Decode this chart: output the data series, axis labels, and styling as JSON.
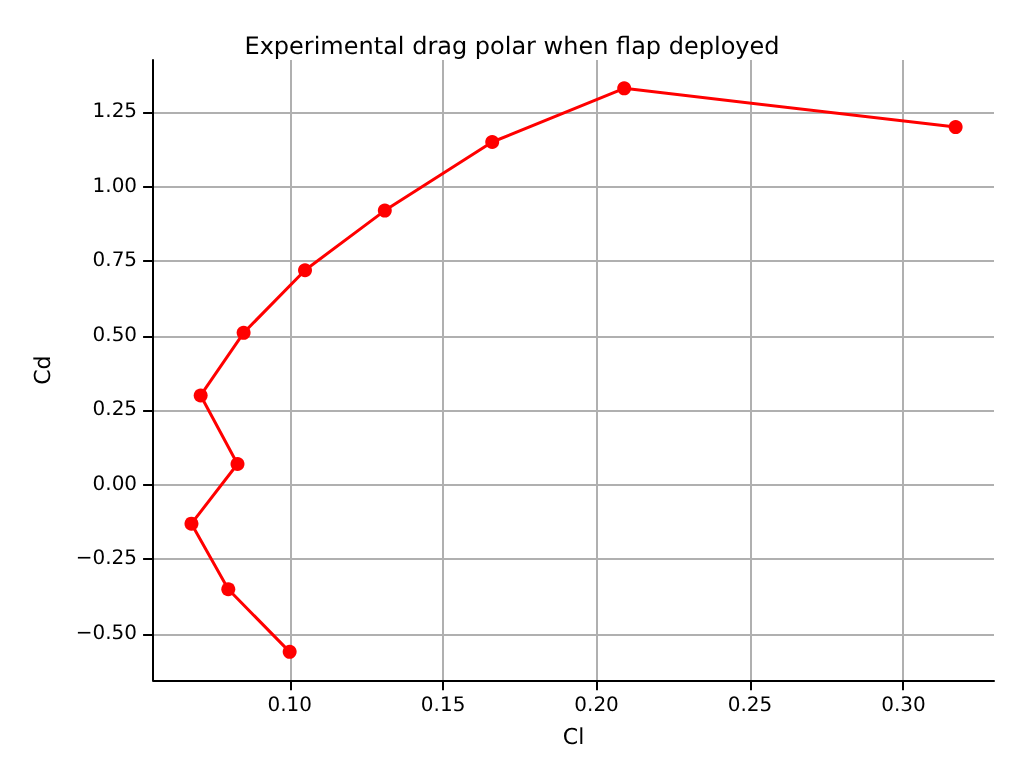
{
  "chart_data": {
    "type": "line",
    "title": "Experimental drag polar when flap deployed",
    "xlabel": "Cl",
    "ylabel": "Cd",
    "x": [
      0.1,
      0.08,
      0.068,
      0.083,
      0.071,
      0.085,
      0.105,
      0.131,
      0.166,
      0.209,
      0.317
    ],
    "series": [
      {
        "color": "#ff0000",
        "values": [
          -0.56,
          -0.35,
          -0.13,
          0.07,
          0.3,
          0.51,
          0.72,
          0.92,
          1.15,
          1.33,
          1.2
        ]
      }
    ],
    "xlim": [
      0.0555,
      0.3295
    ],
    "xticks": [
      {
        "value": 0.1,
        "label": "0.10"
      },
      {
        "value": 0.15,
        "label": "0.15"
      },
      {
        "value": 0.2,
        "label": "0.20"
      },
      {
        "value": 0.25,
        "label": "0.25"
      },
      {
        "value": 0.3,
        "label": "0.30"
      }
    ],
    "ylim": [
      -0.655,
      1.425
    ],
    "yticks": [
      {
        "value": -0.5,
        "label": "−0.50"
      },
      {
        "value": -0.25,
        "label": "−0.25"
      },
      {
        "value": 0,
        "label": "0.00"
      },
      {
        "value": 0.25,
        "label": "0.25"
      },
      {
        "value": 0.5,
        "label": "0.50"
      },
      {
        "value": 0.75,
        "label": "0.75"
      },
      {
        "value": 1.0,
        "label": "1.00"
      },
      {
        "value": 1.25,
        "label": "1.25"
      }
    ],
    "grid": true,
    "marker": "circle",
    "line_style": "solid"
  }
}
